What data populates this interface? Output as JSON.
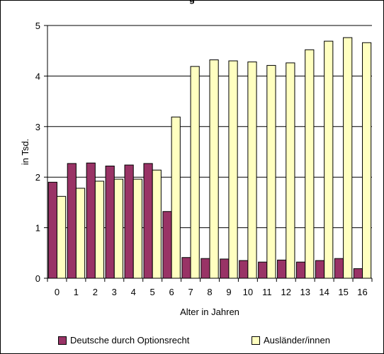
{
  "chart_data": {
    "type": "bar",
    "title": "g",
    "xlabel": "Alter in Jahren",
    "ylabel": "in Tsd.",
    "ylim": [
      0,
      5
    ],
    "yticks": [
      0,
      1,
      2,
      3,
      4,
      5
    ],
    "grid": true,
    "legend_position": "bottom",
    "categories": [
      "0",
      "1",
      "2",
      "3",
      "4",
      "5",
      "6",
      "7",
      "8",
      "9",
      "10",
      "11",
      "12",
      "13",
      "14",
      "15",
      "16"
    ],
    "series": [
      {
        "name": "Deutsche durch Optionsrecht",
        "color": "#993366",
        "values": [
          1.9,
          2.27,
          2.28,
          2.22,
          2.24,
          2.27,
          1.32,
          0.41,
          0.39,
          0.38,
          0.35,
          0.32,
          0.36,
          0.32,
          0.35,
          0.39,
          0.19
        ]
      },
      {
        "name": "Ausländer/innen",
        "color": "#ffffc0",
        "values": [
          1.62,
          1.78,
          1.92,
          1.96,
          1.96,
          2.14,
          3.19,
          4.19,
          4.32,
          4.3,
          4.28,
          4.21,
          4.26,
          4.52,
          4.69,
          4.76,
          4.66
        ]
      }
    ]
  }
}
